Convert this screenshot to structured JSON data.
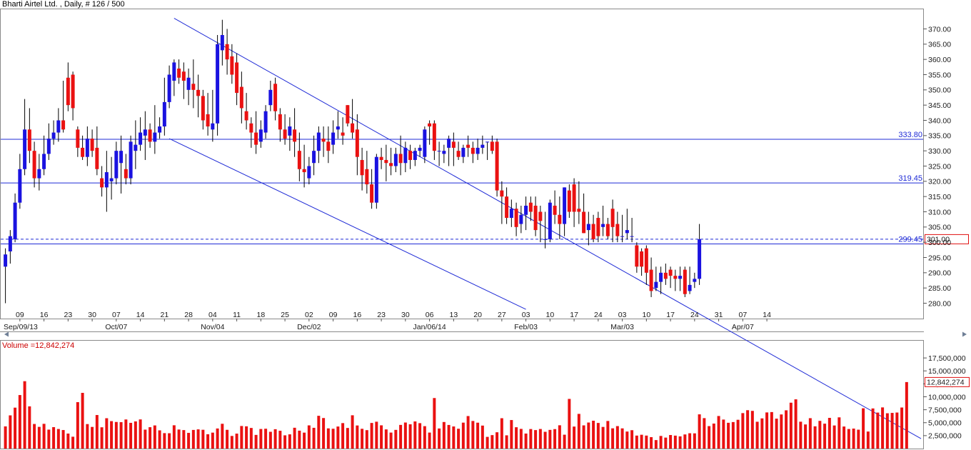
{
  "header": {
    "title": "Bharti Airtel Ltd. , Daily, # 126 / 500"
  },
  "colors": {
    "up": "#1a12e0",
    "down": "#ea1111",
    "line": "#1f2bd6",
    "volume": "#ea1111"
  },
  "volume_label": "Volume =12,842,274",
  "chart_data": [
    {
      "type": "candlestick",
      "ylim": [
        277.5,
        375
      ],
      "yticks": [
        280,
        285,
        290,
        295,
        300,
        305,
        310,
        315,
        320,
        325,
        330,
        335,
        340,
        345,
        350,
        355,
        360,
        365,
        370
      ],
      "ytick_labels": [
        "280.00",
        "285.00",
        "290.00",
        "295.00",
        "300.00",
        "305.00",
        "310.00",
        "315.00",
        "320.00",
        "325.00",
        "330.00",
        "335.00",
        "340.00",
        "345.00",
        "350.00",
        "355.00",
        "360.00",
        "365.00",
        "370.00"
      ],
      "xticks": [
        "09",
        "16",
        "23",
        "30",
        "07",
        "14",
        "21",
        "28",
        "04",
        "11",
        "18",
        "25",
        "02",
        "09",
        "16",
        "23",
        "30",
        "06",
        "13",
        "20",
        "27",
        "03",
        "10",
        "17",
        "24",
        "03",
        "10",
        "17",
        "24",
        "31",
        "07",
        "14"
      ],
      "month_labels": [
        "Sep/09/13",
        "Oct/07",
        "Nov/04",
        "Dec/02",
        "Jan/06/14",
        "Feb/03",
        "Mar/03",
        "Apr/07"
      ],
      "grid": false,
      "levels": [
        {
          "value": 333.8,
          "label": "333.80"
        },
        {
          "value": 319.45,
          "label": "319.45"
        },
        {
          "value": 299.45,
          "label": "299.45"
        }
      ],
      "last_price": {
        "value": 301.0,
        "label": "301.00"
      },
      "trendlines": [
        {
          "from": [
            35,
            373.5
          ],
          "to": [
            135,
            284.5
          ]
        },
        {
          "from": [
            34,
            334
          ],
          "to": [
            108,
            278
          ]
        }
      ],
      "candles": [
        [
          292,
          296,
          280,
          298
        ],
        [
          297,
          302,
          293,
          304
        ],
        [
          301,
          313,
          300,
          316
        ],
        [
          313,
          324,
          311,
          329
        ],
        [
          324,
          337,
          322,
          347
        ],
        [
          337,
          330,
          326,
          344
        ],
        [
          330,
          321,
          318,
          333
        ],
        [
          321,
          324,
          317,
          329
        ],
        [
          324,
          329,
          322,
          335
        ],
        [
          329,
          334,
          327,
          339
        ],
        [
          334,
          336,
          332,
          340
        ],
        [
          336,
          340,
          333,
          344
        ],
        [
          340,
          337,
          336,
          353
        ],
        [
          354,
          345,
          343,
          359
        ],
        [
          355,
          344,
          340,
          356
        ],
        [
          337,
          331,
          328,
          338
        ],
        [
          331,
          328,
          327,
          335
        ],
        [
          328,
          334,
          325,
          338
        ],
        [
          334,
          330,
          328,
          337
        ],
        [
          331,
          324,
          322,
          338
        ],
        [
          321,
          318,
          315,
          325
        ],
        [
          318,
          323,
          310,
          330
        ],
        [
          320,
          321,
          314,
          328
        ],
        [
          321,
          330,
          319,
          333
        ],
        [
          326,
          330,
          316,
          335
        ],
        [
          324,
          321,
          319,
          329
        ],
        [
          321,
          333,
          319,
          335
        ],
        [
          330,
          332,
          324,
          340
        ],
        [
          332,
          336,
          330,
          341
        ],
        [
          335,
          337,
          327,
          343
        ],
        [
          337,
          333,
          331,
          339
        ],
        [
          333,
          336,
          329,
          345
        ],
        [
          336,
          338,
          334,
          341
        ],
        [
          338,
          346,
          335,
          354
        ],
        [
          346,
          355,
          344,
          358
        ],
        [
          353,
          359,
          348,
          360
        ],
        [
          357,
          354,
          352,
          360
        ],
        [
          356,
          353,
          347,
          359
        ],
        [
          350,
          354,
          345,
          357
        ],
        [
          352,
          350,
          344,
          360
        ],
        [
          350,
          348,
          341,
          355
        ],
        [
          348,
          340,
          337,
          350
        ],
        [
          342,
          338,
          335,
          349
        ],
        [
          337,
          339,
          333,
          350
        ],
        [
          339,
          365,
          335,
          368
        ],
        [
          363,
          368,
          358,
          373
        ],
        [
          365,
          360,
          355,
          370
        ],
        [
          361,
          355,
          352,
          365
        ],
        [
          359,
          349,
          345,
          362
        ],
        [
          351,
          344,
          339,
          356
        ],
        [
          343,
          340,
          337,
          349
        ],
        [
          339,
          336,
          331,
          341
        ],
        [
          336,
          332,
          329,
          343
        ],
        [
          333,
          337,
          331,
          340
        ],
        [
          336,
          343,
          334,
          345
        ],
        [
          345,
          350,
          343,
          353
        ],
        [
          352,
          343,
          340,
          354
        ],
        [
          342,
          337,
          333,
          344
        ],
        [
          337,
          334,
          332,
          342
        ],
        [
          335,
          338,
          330,
          341
        ],
        [
          337,
          333,
          328,
          344
        ],
        [
          330,
          324,
          320,
          336
        ],
        [
          324,
          323,
          318,
          332
        ],
        [
          321,
          325,
          319,
          328
        ],
        [
          326,
          330,
          322,
          335
        ],
        [
          330,
          336,
          326,
          338
        ],
        [
          334,
          333,
          328,
          338
        ],
        [
          333,
          330,
          326,
          338
        ],
        [
          332,
          336,
          329,
          340
        ],
        [
          337,
          338,
          334,
          343
        ],
        [
          336,
          335,
          332,
          341
        ],
        [
          345,
          339,
          338,
          345
        ],
        [
          339,
          336,
          334,
          347
        ],
        [
          337,
          328,
          322,
          342
        ],
        [
          327,
          322,
          317,
          331
        ],
        [
          324,
          319,
          316,
          330
        ],
        [
          319,
          313,
          311,
          324
        ],
        [
          313,
          328,
          311,
          329
        ],
        [
          328,
          327,
          324,
          331
        ],
        [
          327,
          326,
          320,
          332
        ],
        [
          326,
          325,
          322,
          331
        ],
        [
          325,
          329,
          323,
          331
        ],
        [
          329,
          326,
          322,
          335
        ],
        [
          326,
          331,
          323,
          333
        ],
        [
          330,
          327,
          324,
          332
        ],
        [
          327,
          330,
          325,
          331
        ],
        [
          330,
          331,
          328,
          332
        ],
        [
          328,
          337,
          326,
          338
        ],
        [
          339,
          338,
          332,
          340
        ],
        [
          339,
          330,
          327,
          340
        ],
        [
          330,
          330,
          325,
          333
        ],
        [
          329,
          330,
          326,
          332
        ],
        [
          331,
          334,
          325,
          335
        ],
        [
          333,
          331,
          325,
          336
        ],
        [
          330,
          328,
          327,
          333
        ],
        [
          328,
          331,
          326,
          332
        ],
        [
          332,
          331,
          328,
          335
        ],
        [
          331,
          329,
          326,
          333
        ],
        [
          329,
          331,
          327,
          334
        ],
        [
          331,
          332,
          329,
          335
        ],
        [
          333,
          333,
          327,
          333
        ],
        [
          333,
          330,
          329,
          335
        ],
        [
          333,
          317,
          315,
          334
        ],
        [
          317,
          315,
          306,
          320
        ],
        [
          315,
          308,
          306,
          318
        ],
        [
          308,
          311,
          305,
          314
        ],
        [
          311,
          305,
          302,
          313
        ],
        [
          306,
          309,
          303,
          312
        ],
        [
          309,
          312,
          304,
          315
        ],
        [
          313,
          310,
          307,
          315
        ],
        [
          312,
          304,
          302,
          315
        ],
        [
          310,
          307,
          300,
          312
        ],
        [
          301,
          301,
          298,
          310
        ],
        [
          301,
          313,
          300,
          314
        ],
        [
          312,
          309,
          306,
          317
        ],
        [
          309,
          306,
          301,
          315
        ],
        [
          306,
          318,
          302,
          318
        ],
        [
          317,
          310,
          308,
          319
        ],
        [
          319,
          310,
          305,
          321
        ],
        [
          311,
          310,
          306,
          320
        ],
        [
          310,
          303,
          303,
          316
        ],
        [
          304,
          306,
          299,
          310
        ],
        [
          306,
          301,
          300,
          309
        ],
        [
          308,
          302,
          300,
          310
        ],
        [
          305,
          306,
          302,
          312
        ],
        [
          306,
          302,
          301,
          308
        ],
        [
          311,
          305,
          300,
          314
        ],
        [
          306,
          302,
          300,
          310
        ],
        [
          302,
          302,
          300,
          309
        ],
        [
          303,
          304,
          301,
          311
        ],
        [
          302,
          302,
          300,
          308
        ],
        [
          299,
          292,
          290,
          300
        ],
        [
          297,
          292,
          289,
          298
        ],
        [
          298,
          290,
          286,
          299
        ],
        [
          291,
          284,
          282,
          295
        ],
        [
          285,
          287,
          284,
          292
        ],
        [
          287,
          290,
          283,
          292
        ],
        [
          290,
          288,
          286,
          293
        ],
        [
          291,
          289,
          285,
          292
        ],
        [
          289,
          288,
          284,
          291
        ],
        [
          288,
          289,
          284,
          292
        ],
        [
          291,
          283,
          282,
          292
        ],
        [
          284,
          286,
          283,
          292
        ],
        [
          287,
          288,
          285,
          290
        ],
        [
          288,
          301,
          286,
          306
        ]
      ]
    },
    {
      "type": "bar",
      "title": "Volume =12,842,274",
      "ylim": [
        0,
        20000000
      ],
      "yticks": [
        2500000,
        5000000,
        7500000,
        10000000,
        12500000,
        15000000,
        17500000
      ],
      "ytick_labels": [
        "2,500,000",
        "5,000,000",
        "7,500,000",
        "10,000,000",
        "12,500,000",
        "15,000,000",
        "17,500,000"
      ],
      "last_value": {
        "value": 12842274,
        "label": "12,842,274"
      },
      "values": [
        4287000,
        6412000,
        7904000,
        10338000,
        13010000,
        8155000,
        4750000,
        4192000,
        4780000,
        3662000,
        4140000,
        3780000,
        3580000,
        2900000,
        2290000,
        8965000,
        10760000,
        4730000,
        4180000,
        6480000,
        4110000,
        5860000,
        5300000,
        5140000,
        5100000,
        5620000,
        4970000,
        5250000,
        5630000,
        3660000,
        4130000,
        4470000,
        3520000,
        2980000,
        2960000,
        4500000,
        3680000,
        3570000,
        3030000,
        3600000,
        3710000,
        3630000,
        2770000,
        3080000,
        3880000,
        4790000,
        3620000,
        2440000,
        2890000,
        4360000,
        4300000,
        3980000,
        2640000,
        3780000,
        3830000,
        3240000,
        3740000,
        3440000,
        2560000,
        2750000,
        4020000,
        3460000,
        3080000,
        4480000,
        4010000,
        6330000,
        5900000,
        3900000,
        3830000,
        4260000,
        4920000,
        3980000,
        6430000,
        4460000,
        3820000,
        3560000,
        4950000,
        5190000,
        4490000,
        3700000,
        3090000,
        3610000,
        4570000,
        5030000,
        4690000,
        5240000,
        4910000,
        4330000,
        3090000,
        9760000,
        3880000,
        5130000,
        4560000,
        4270000,
        3830000,
        5010000,
        6280000,
        5330000,
        5000000,
        4440000,
        2260000,
        2600000,
        3150000,
        5860000,
        2560000,
        5510000,
        4120000,
        3800000,
        2900000,
        3770000,
        3570000,
        3780000,
        3240000,
        3610000,
        3760000,
        4500000,
        2680000,
        9590000,
        4250000,
        6700000,
        4480000,
        5030000,
        5380000,
        4950000,
        4180000,
        5330000,
        3910000,
        4340000,
        3900000,
        3290000,
        3550000,
        2510000,
        2670000,
        2510000,
        2210000,
        1640000,
        2440000,
        2120000,
        2620000,
        2500000,
        2360000,
        2730000,
        2960000,
        2940000,
        6610000,
        5880000,
        4340000,
        4830000,
        6290000,
        5600000,
        4980000,
        5120000,
        5560000,
        6850000,
        7410000,
        7280000,
        5180000,
        5830000,
        6980000,
        7050000,
        5780000,
        6590000,
        7390000,
        8860000,
        9510000,
        5190000,
        4660000,
        5870000,
        4300000,
        5350000,
        4810000,
        5930000,
        4460000,
        6030000,
        4260000,
        3780000,
        3860000,
        3650000,
        7780000,
        3290000,
        7750000,
        6950000,
        7950000,
        6820000,
        6890000,
        6960000,
        7930000,
        12842274
      ]
    }
  ]
}
